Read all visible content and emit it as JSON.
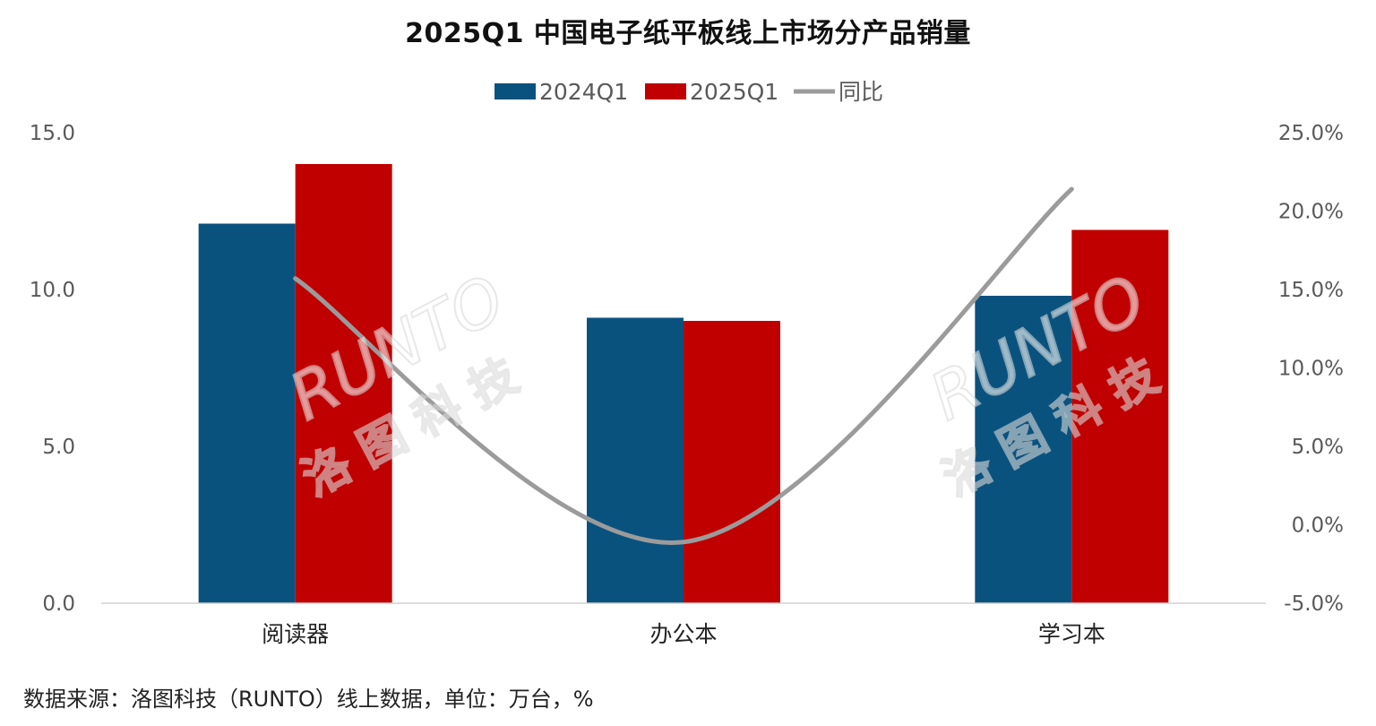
{
  "title": "2025Q1 中国电子纸平板线上市场分产品销量",
  "footnote": "数据来源：洛图科技（RUNTO）线上数据，单位：万台，%",
  "watermark": {
    "latin": "RUNTO",
    "cjk": "洛图科技"
  },
  "colors": {
    "series1": "#0a527e",
    "series2": "#c00000",
    "line": "#9b9b9b",
    "axis": "#d0d0d0"
  },
  "chart_data": {
    "type": "bar",
    "title": "2025Q1 中国电子纸平板线上市场分产品销量",
    "categories": [
      "阅读器",
      "办公本",
      "学习本"
    ],
    "series": [
      {
        "name": "2024Q1",
        "values": [
          12.1,
          9.1,
          9.8
        ],
        "axis": "left"
      },
      {
        "name": "2025Q1",
        "values": [
          14.0,
          9.0,
          11.9
        ],
        "axis": "left"
      }
    ],
    "line_series": {
      "name": "同比",
      "values": [
        15.7,
        -1.1,
        21.4
      ],
      "axis": "right",
      "type": "smoothed-line"
    },
    "ylim": [
      0,
      15
    ],
    "yticks": [
      "0.0",
      "5.0",
      "10.0",
      "15.0"
    ],
    "y2lim": [
      -5,
      25
    ],
    "y2ticks": [
      "-5.0%",
      "0.0%",
      "5.0%",
      "10.0%",
      "15.0%",
      "20.0%",
      "25.0%"
    ],
    "grid": false,
    "legend_position": "top-center"
  }
}
